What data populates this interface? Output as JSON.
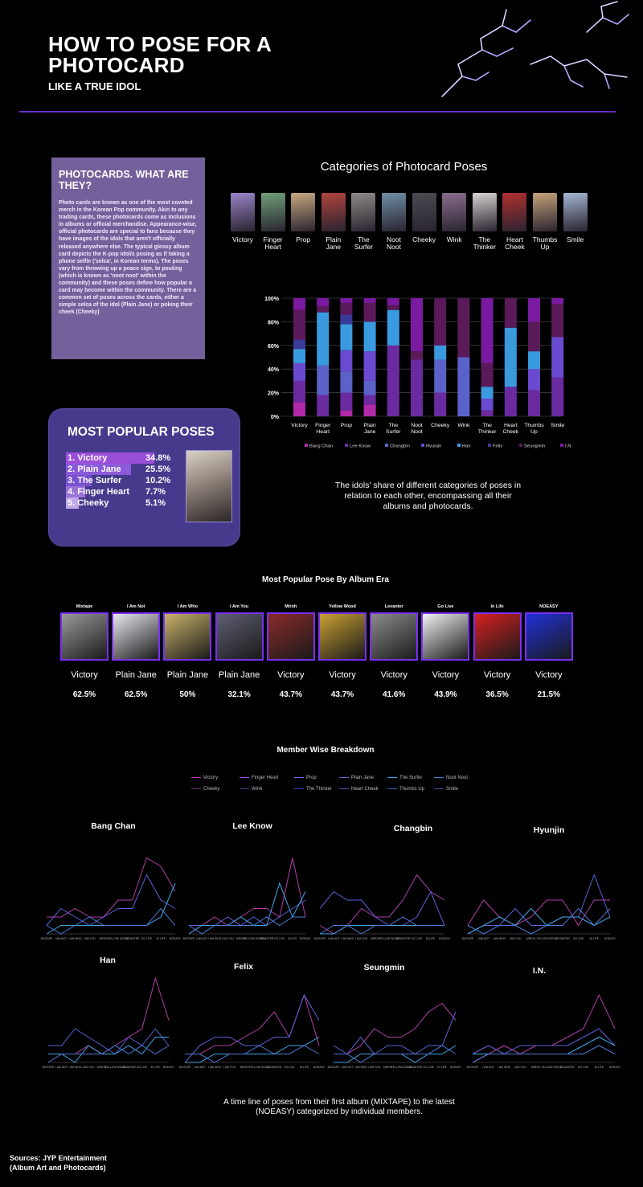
{
  "header": {
    "title": "HOW TO POSE FOR A PHOTOCARD",
    "subtitle": "LIKE A TRUE IDOL"
  },
  "info": {
    "title": "PHOTOCARDS. WHAT ARE THEY?",
    "text": "Photo cards are known as one of the most coveted merch in the Korean Pop community. Akin to any trading cards, these photocards come as inclusions in albums or official merchandise. Appearance-wise, official photocards are special to fans because they have images of the idols that aren't officially released anywhere else. The typical glossy album card depicts the K-pop idol/s posing as if taking a phone selfie ('selca', in Korean terms). The poses vary from throwing up a peace sign, to pouting (which is known as 'noot noot' within the community) and these poses define how popular a card may become within the community. There are a common set of poses across the cards, either a simple selca of the idol (Plain Jane) or poking their cheek (Cheeky)"
  },
  "categories": {
    "title": "Categories of Photocard Poses",
    "items": [
      {
        "label": "Victory",
        "color": "#9a84c8"
      },
      {
        "label": "Finger Heart",
        "color": "#6fa07a"
      },
      {
        "label": "Prop",
        "color": "#c7a87e"
      },
      {
        "label": "Plain Jane",
        "color": "#b0443e"
      },
      {
        "label": "The Surfer",
        "color": "#8f8a86"
      },
      {
        "label": "Noot Noot",
        "color": "#6f8fa6"
      },
      {
        "label": "Cheeky",
        "color": "#4a4c52"
      },
      {
        "label": "Wink",
        "color": "#8a6e8e"
      },
      {
        "label": "The Thinker",
        "color": "#d6d2d0"
      },
      {
        "label": "Heart Cheek",
        "color": "#b03030"
      },
      {
        "label": "Thumbs Up",
        "color": "#c6a27a"
      },
      {
        "label": "Smile",
        "color": "#a4b6d2"
      }
    ]
  },
  "stack_caption": "The idols' share of different categories of poses in relation to each other, encompassing all their albums and photocards.",
  "popular": {
    "title": "MOST POPULAR POSES",
    "items": [
      {
        "label": "1. Victory",
        "value": "34.8%",
        "pct": 34.8
      },
      {
        "label": "2. Plain Jane",
        "value": "25.5%",
        "pct": 25.5
      },
      {
        "label": "3. The Surfer",
        "value": "10.2%",
        "pct": 10.2
      },
      {
        "label": "4. Finger Heart",
        "value": "7.7%",
        "pct": 7.7
      },
      {
        "label": "5. Cheeky",
        "value": "5.1%",
        "pct": 5.1
      }
    ],
    "colors": [
      "#9a4fd8",
      "#8a5ad8",
      "#7a52d0",
      "#9a72d8",
      "#c0a8e8"
    ]
  },
  "eras": {
    "title": "Most Popular Pose By Album Era",
    "items": [
      {
        "name": "Mixtape",
        "pose": "Victory",
        "pct": "62.5%",
        "cover": "#9a9a9a"
      },
      {
        "name": "I Am Not",
        "pose": "Plain Jane",
        "pct": "62.5%",
        "cover": "#e8e8f0"
      },
      {
        "name": "I Am Who",
        "pose": "Plain Jane",
        "pct": "50%",
        "cover": "#c9b36a"
      },
      {
        "name": "I Am You",
        "pose": "Plain Jane",
        "pct": "32.1%",
        "cover": "#5e5f73"
      },
      {
        "name": "Miroh",
        "pose": "Victory",
        "pct": "43.7%",
        "cover": "#8a2a2a"
      },
      {
        "name": "Yellow Wood",
        "pose": "Victory",
        "pct": "43.7%",
        "cover": "#c9a032"
      },
      {
        "name": "Levanter",
        "pose": "Victory",
        "pct": "41.6%",
        "cover": "#8c8c8c"
      },
      {
        "name": "Go Live",
        "pose": "Victory",
        "pct": "43.9%",
        "cover": "#f2f2f2"
      },
      {
        "name": "In Life",
        "pose": "Victory",
        "pct": "36.5%",
        "cover": "#d62020"
      },
      {
        "name": "NOEASY",
        "pose": "Victory",
        "pct": "21.5%",
        "cover": "#2030d8"
      }
    ]
  },
  "members": {
    "title": "Member Wise Breakdown",
    "caption": "A time line of poses from their first album (MIXTAPE) to the latest (NOEASY) categorized by individual members.",
    "legend": [
      {
        "label": "Victory",
        "color": "#b03fa8"
      },
      {
        "label": "Finger Heart",
        "color": "#a04fd0"
      },
      {
        "label": "Prop",
        "color": "#7a6ae0"
      },
      {
        "label": "Plain Jane",
        "color": "#5a62d8"
      },
      {
        "label": "The Surfer",
        "color": "#3fa8e8"
      },
      {
        "label": "Noot Noot",
        "color": "#4a7ad8"
      },
      {
        "label": "Cheeky",
        "color": "#6a2a7a"
      },
      {
        "label": "Wink",
        "color": "#5a3a8a"
      },
      {
        "label": "The Thinker",
        "color": "#3a3ab0"
      },
      {
        "label": "Heart Cheek",
        "color": "#4a5aa8"
      },
      {
        "label": "Thumbs Up",
        "color": "#3a6ab0"
      },
      {
        "label": "Smile",
        "color": "#4a4a9a"
      }
    ]
  },
  "sources": {
    "line1": "Sources: JYP Entertainment",
    "line2": "(Album Art and Photocards)"
  },
  "chart_data": [
    {
      "type": "bar",
      "stacked": true,
      "categories": [
        "Victory",
        "Finger Heart",
        "Prop",
        "Plain Jane",
        "The Surfer",
        "Noot Noot",
        "Cheeky",
        "Wink",
        "The Thinker",
        "Heart Cheek",
        "Thumbs Up",
        "Smile"
      ],
      "series": [
        {
          "name": "Bang Chan",
          "color": "#b02aa8",
          "values": [
            12,
            0,
            5,
            10,
            0,
            0,
            0,
            0,
            0,
            0,
            0,
            0
          ]
        },
        {
          "name": "Lee Know",
          "color": "#6a2aa0",
          "values": [
            18,
            18,
            15,
            8,
            60,
            48,
            20,
            0,
            5,
            25,
            22,
            33
          ]
        },
        {
          "name": "Changbin",
          "color": "#5a62c8",
          "values": [
            0,
            25,
            18,
            12,
            0,
            0,
            28,
            50,
            0,
            0,
            0,
            0
          ]
        },
        {
          "name": "Hyunjin",
          "color": "#6a4ad0",
          "values": [
            15,
            0,
            18,
            25,
            0,
            0,
            0,
            0,
            10,
            0,
            18,
            34
          ]
        },
        {
          "name": "Han",
          "color": "#3a9ae0",
          "values": [
            12,
            45,
            22,
            25,
            30,
            0,
            12,
            0,
            10,
            50,
            15,
            0
          ]
        },
        {
          "name": "Felix",
          "color": "#3a3a9a",
          "values": [
            8,
            0,
            8,
            0,
            0,
            0,
            0,
            0,
            0,
            0,
            0,
            0
          ]
        },
        {
          "name": "Seungmin",
          "color": "#5a1a5a",
          "values": [
            25,
            5,
            10,
            16,
            4,
            7,
            40,
            50,
            20,
            25,
            25,
            28
          ]
        },
        {
          "name": "I.N",
          "color": "#7a1aa0",
          "values": [
            10,
            7,
            4,
            4,
            6,
            45,
            0,
            0,
            55,
            0,
            20,
            5
          ]
        }
      ],
      "yticks": [
        "0%",
        "20%",
        "40%",
        "60%",
        "80%",
        "100%"
      ],
      "ylim": [
        0,
        100
      ],
      "legend": "bottom"
    },
    {
      "type": "line",
      "x": [
        "MIXTAPE",
        "I AM NOT",
        "I AM WHO",
        "I AM YOU",
        "MIROH",
        "YELLOW WOOD",
        "LEVANTER",
        "GO LIVE",
        "IN LIFE",
        "NOEASY"
      ],
      "panels": [
        {
          "member": "Bang Chan",
          "series": [
            {
              "name": "Victory",
              "values": [
                2,
                2,
                3,
                2,
                2,
                4,
                4,
                9,
                8,
                5
              ]
            },
            {
              "name": "Plain Jane",
              "values": [
                1,
                3,
                2,
                1,
                2,
                3,
                3,
                7,
                4,
                3
              ]
            },
            {
              "name": "The Surfer",
              "values": [
                0,
                1,
                1,
                1,
                1,
                1,
                1,
                1,
                2,
                6
              ]
            },
            {
              "name": "Noot Noot",
              "values": [
                1,
                0,
                1,
                2,
                1,
                1,
                1,
                1,
                3,
                1
              ]
            }
          ]
        },
        {
          "member": "Lee Know",
          "series": [
            {
              "name": "Victory",
              "values": [
                0,
                1,
                2,
                1,
                2,
                3,
                3,
                2,
                9,
                2
              ]
            },
            {
              "name": "Plain Jane",
              "values": [
                1,
                1,
                1,
                2,
                1,
                2,
                1,
                2,
                3,
                4
              ]
            },
            {
              "name": "The Surfer",
              "values": [
                0,
                1,
                1,
                1,
                2,
                1,
                1,
                6,
                2,
                5
              ]
            },
            {
              "name": "Noot Noot",
              "values": [
                1,
                0,
                1,
                1,
                1,
                1,
                2,
                1,
                2,
                2
              ]
            }
          ]
        },
        {
          "member": "Changbin",
          "series": [
            {
              "name": "Victory",
              "values": [
                1,
                0,
                1,
                3,
                2,
                2,
                4,
                7,
                5,
                4
              ]
            },
            {
              "name": "Plain Jane",
              "values": [
                3,
                5,
                4,
                4,
                2,
                1,
                1,
                2,
                5,
                1
              ]
            },
            {
              "name": "The Surfer",
              "values": [
                0,
                0,
                1,
                1,
                1,
                1,
                1,
                1,
                1,
                1
              ]
            },
            {
              "name": "Noot Noot",
              "values": [
                0,
                1,
                1,
                0,
                1,
                1,
                2,
                1,
                1,
                1
              ]
            }
          ]
        },
        {
          "member": "Hyunjin",
          "series": [
            {
              "name": "Victory",
              "values": [
                1,
                4,
                2,
                1,
                2,
                4,
                4,
                1,
                4,
                4
              ]
            },
            {
              "name": "Plain Jane",
              "values": [
                0,
                1,
                1,
                3,
                1,
                1,
                2,
                2,
                7,
                2
              ]
            },
            {
              "name": "The Surfer",
              "values": [
                0,
                1,
                2,
                1,
                3,
                1,
                2,
                2,
                1,
                2
              ]
            },
            {
              "name": "Noot Noot",
              "values": [
                1,
                0,
                1,
                1,
                0,
                1,
                1,
                3,
                1,
                3
              ]
            }
          ]
        },
        {
          "member": "Han",
          "series": [
            {
              "name": "Victory",
              "values": [
                1,
                1,
                1,
                2,
                1,
                2,
                3,
                4,
                10,
                5
              ]
            },
            {
              "name": "Plain Jane",
              "values": [
                2,
                2,
                4,
                3,
                2,
                1,
                3,
                2,
                4,
                2
              ]
            },
            {
              "name": "The Surfer",
              "values": [
                1,
                1,
                0,
                2,
                1,
                1,
                2,
                1,
                3,
                3
              ]
            },
            {
              "name": "Noot Noot",
              "values": [
                0,
                1,
                1,
                1,
                1,
                2,
                1,
                2,
                1,
                2
              ]
            }
          ]
        },
        {
          "member": "Felix",
          "series": [
            {
              "name": "Victory",
              "values": [
                1,
                1,
                2,
                2,
                3,
                4,
                6,
                3,
                8,
                2
              ]
            },
            {
              "name": "Plain Jane",
              "values": [
                0,
                2,
                3,
                3,
                2,
                2,
                3,
                3,
                8,
                5
              ]
            },
            {
              "name": "The Surfer",
              "values": [
                0,
                0,
                1,
                1,
                1,
                1,
                1,
                2,
                2,
                3
              ]
            },
            {
              "name": "Noot Noot",
              "values": [
                1,
                1,
                0,
                1,
                1,
                2,
                1,
                1,
                2,
                1
              ]
            }
          ]
        },
        {
          "member": "Seungmin",
          "series": [
            {
              "name": "Victory",
              "values": [
                1,
                1,
                2,
                4,
                3,
                3,
                4,
                6,
                7,
                5
              ]
            },
            {
              "name": "Plain Jane",
              "values": [
                2,
                1,
                3,
                1,
                2,
                2,
                1,
                2,
                2,
                6
              ]
            },
            {
              "name": "The Surfer",
              "values": [
                0,
                0,
                1,
                1,
                1,
                1,
                0,
                1,
                1,
                2
              ]
            },
            {
              "name": "Noot Noot",
              "values": [
                1,
                1,
                0,
                1,
                1,
                1,
                1,
                1,
                2,
                1
              ]
            }
          ]
        },
        {
          "member": "I.N.",
          "series": [
            {
              "name": "Victory",
              "values": [
                0,
                1,
                2,
                1,
                2,
                2,
                3,
                4,
                8,
                4
              ]
            },
            {
              "name": "Plain Jane",
              "values": [
                1,
                2,
                1,
                2,
                2,
                2,
                2,
                3,
                4,
                2
              ]
            },
            {
              "name": "The Surfer",
              "values": [
                1,
                1,
                1,
                1,
                1,
                1,
                1,
                2,
                3,
                2
              ]
            },
            {
              "name": "Noot Noot",
              "values": [
                0,
                1,
                1,
                1,
                1,
                1,
                1,
                1,
                2,
                1
              ]
            }
          ]
        }
      ]
    }
  ]
}
